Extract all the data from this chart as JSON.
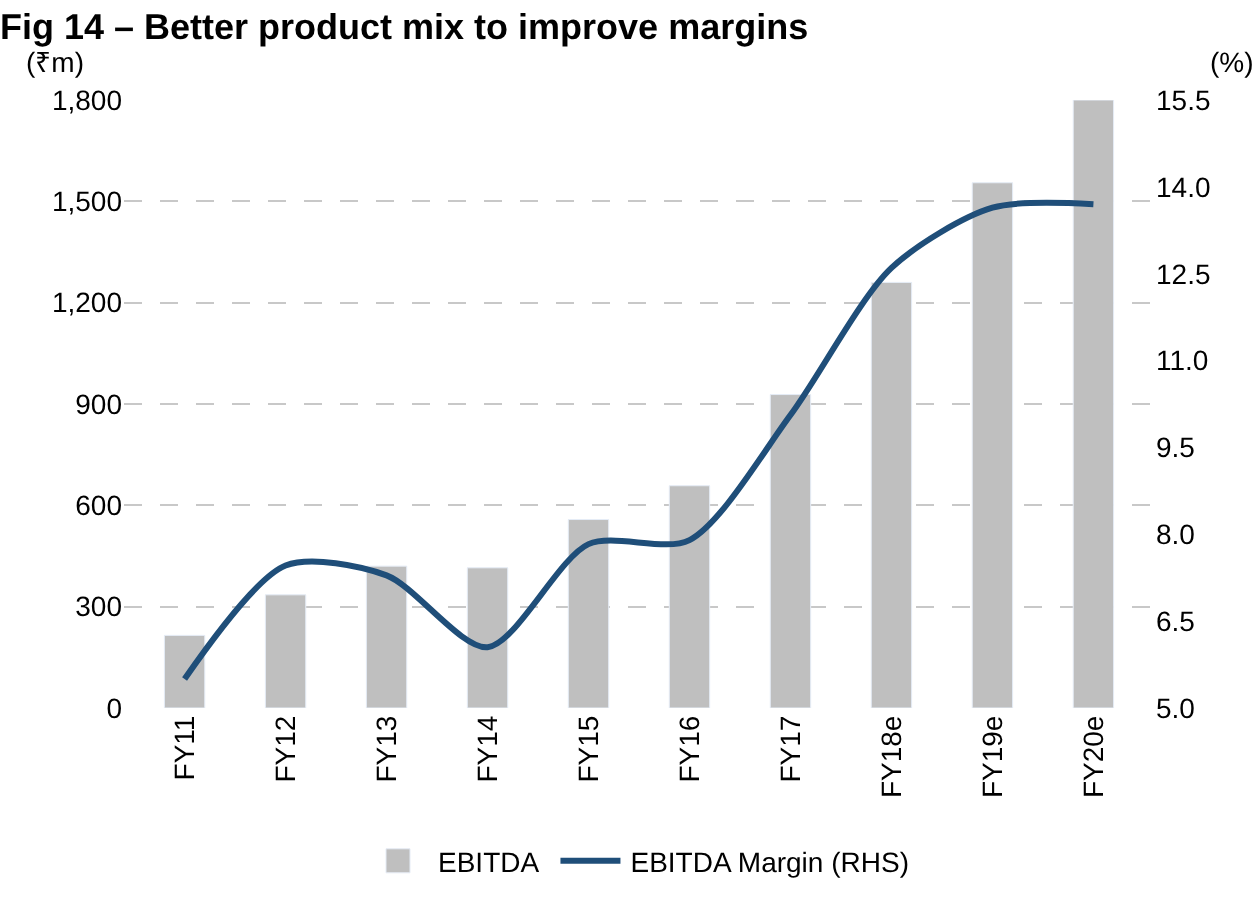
{
  "chart_data": {
    "type": "bar",
    "title": "Fig 14 – Better product mix to improve margins",
    "ylabel": "(₹m)",
    "y2label": "(%)",
    "categories": [
      "FY11",
      "FY12",
      "FY13",
      "FY14",
      "FY15",
      "FY16",
      "FY17",
      "FY18e",
      "FY19e",
      "FY20e"
    ],
    "series": [
      {
        "name": "EBITDA",
        "color": "#bfbfbf",
        "values": [
          215,
          335,
          420,
          415,
          558,
          658,
          928,
          1260,
          1555,
          1800
        ]
      },
      {
        "name": "EBITDA Margin (RHS)",
        "type": "line",
        "axis": "y2",
        "color": "#1f4e79",
        "values": [
          5.5,
          7.46,
          7.29,
          6.05,
          7.83,
          7.9,
          10.06,
          12.6,
          13.64,
          13.7
        ]
      }
    ],
    "ylim": [
      0,
      1800
    ],
    "yticks": [
      0,
      {
        "value": 300,
        "label": "300"
      },
      {
        "value": 600,
        "label": "600"
      },
      {
        "value": 900,
        "label": "900"
      },
      {
        "value": 1200,
        "label": "1,200"
      },
      {
        "value": 1500,
        "label": "1,500"
      },
      {
        "value": 1800,
        "label": "1,800"
      }
    ],
    "y2lim": [
      5.0,
      15.5
    ],
    "y2ticks": [
      {
        "value": 5.0,
        "label": "5.0"
      },
      {
        "value": 6.5,
        "label": "6.5"
      },
      {
        "value": 8.0,
        "label": "8.0"
      },
      {
        "value": 9.5,
        "label": "9.5"
      },
      {
        "value": 11.0,
        "label": "11.0"
      },
      {
        "value": 12.5,
        "label": "12.5"
      },
      {
        "value": 14.0,
        "label": "14.0"
      },
      {
        "value": 15.5,
        "label": "15.5"
      }
    ],
    "grid": "y",
    "legend": "bottom",
    "line_style": "solid",
    "marker": "none"
  }
}
